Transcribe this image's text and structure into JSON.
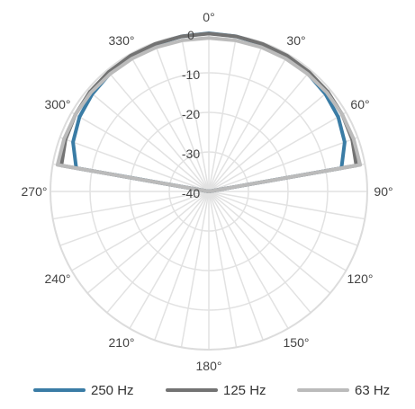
{
  "chart_data": {
    "type": "polar-line",
    "title": "",
    "angular_axis": {
      "direction": "clockwise",
      "zero_at": "top",
      "ticks": [
        0,
        30,
        60,
        90,
        120,
        150,
        180,
        210,
        240,
        270,
        300,
        330
      ],
      "tick_labels": [
        "0°",
        "30°",
        "60°",
        "90°",
        "120°",
        "150°",
        "180°",
        "210°",
        "240°",
        "270°",
        "300°",
        "330°"
      ],
      "spoke_step_deg": 10
    },
    "radial_axis": {
      "range": [
        -40,
        0
      ],
      "ticks": [
        0,
        -10,
        -20,
        -30,
        -40
      ],
      "tick_labels": [
        "0",
        "-10",
        "-20",
        "-30",
        "-40"
      ]
    },
    "angles": [
      -90,
      -80,
      -70,
      -60,
      -50,
      -40,
      -30,
      -20,
      -10,
      0,
      10,
      20,
      30,
      40,
      50,
      60,
      70,
      80,
      90
    ],
    "series": [
      {
        "name": "250 Hz",
        "color": "#3a7ca5",
        "values": [
          -40,
          -6,
          -3.5,
          -2.3,
          -1.6,
          -1.1,
          -0.7,
          -0.4,
          -0.2,
          0,
          -0.2,
          -0.4,
          -0.7,
          -1.1,
          -1.6,
          -2.3,
          -3.5,
          -6,
          -40
        ]
      },
      {
        "name": "125 Hz",
        "color": "#737373",
        "values": [
          -40,
          -2.2,
          -1.5,
          -1.1,
          -0.8,
          -0.6,
          -0.4,
          -0.3,
          -0.2,
          -0.1,
          -0.2,
          -0.3,
          -0.4,
          -0.6,
          -0.8,
          -1.1,
          -1.5,
          -2.2,
          -40
        ]
      },
      {
        "name": "63 Hz",
        "color": "#bbbbbb",
        "values": [
          -40,
          -1.2,
          -1.1,
          -1.1,
          -1.1,
          -1.2,
          -1.2,
          -1.2,
          -1.2,
          -1.2,
          -1.2,
          -1.2,
          -1.2,
          -1.2,
          -1.1,
          -1.1,
          -1.1,
          -1.2,
          -40
        ]
      }
    ],
    "legend": {
      "position": "bottom"
    },
    "grid": true
  }
}
